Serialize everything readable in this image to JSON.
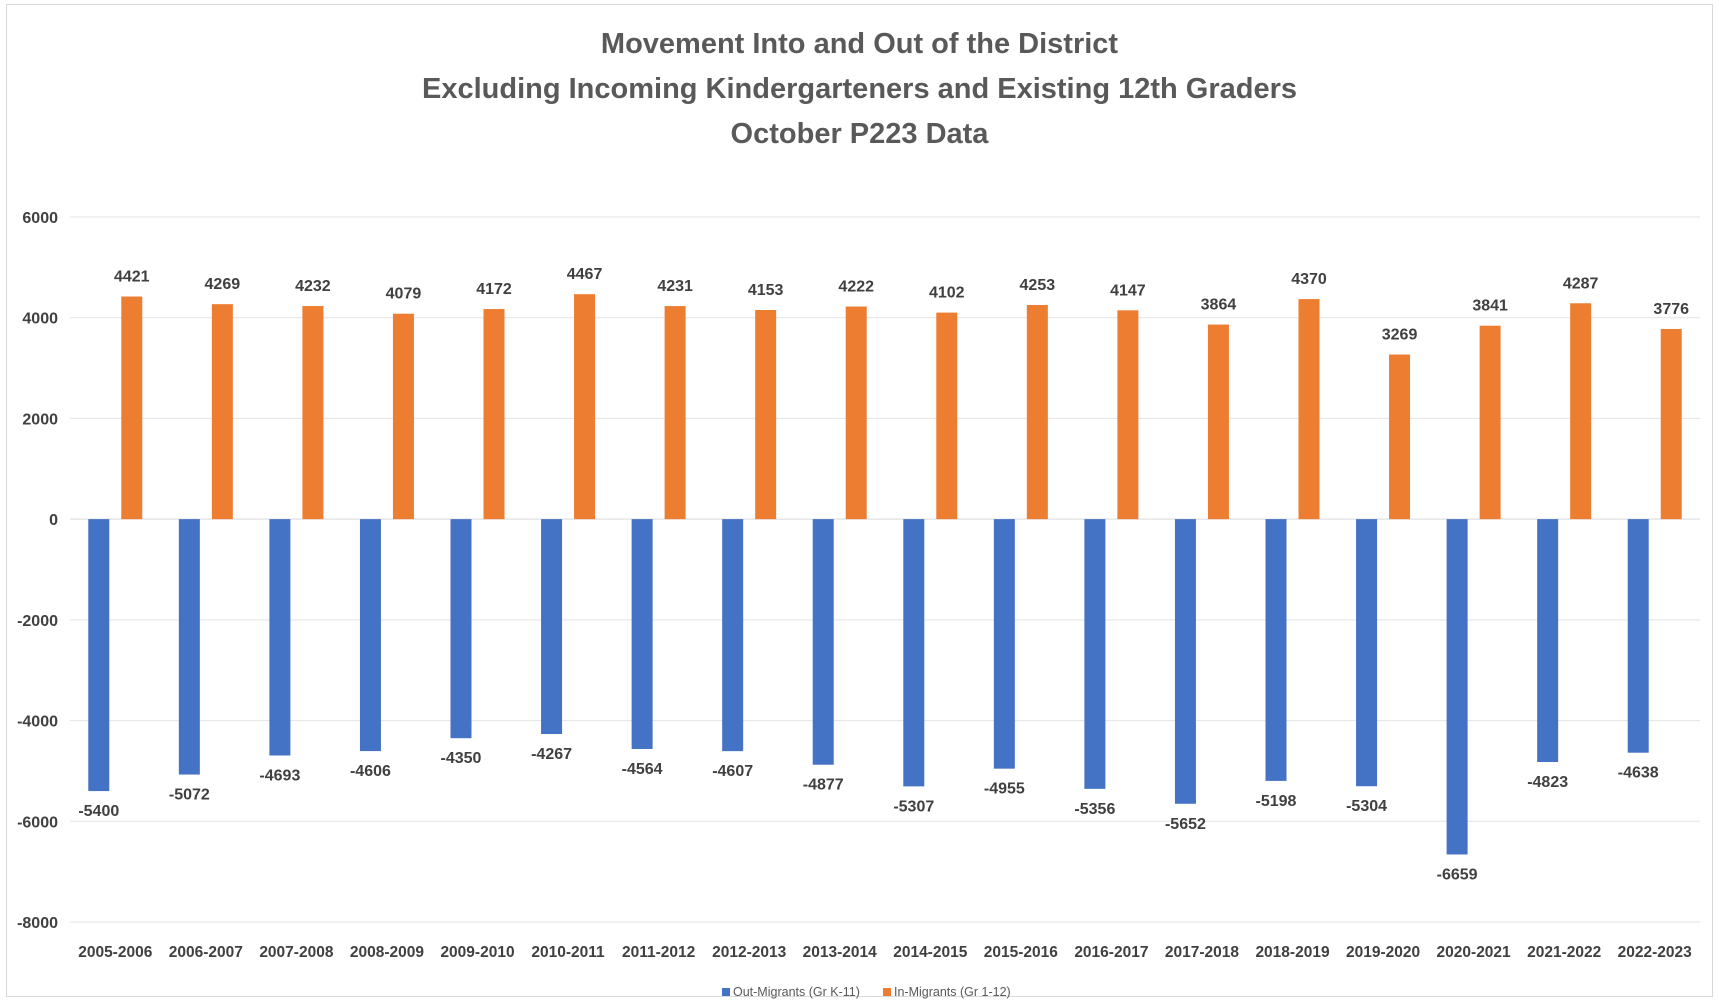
{
  "chart_data": {
    "type": "bar",
    "title": "Movement Into and Out of the District",
    "subtitle": "Excluding Incoming Kindergarteners and Existing 12th Graders",
    "subtitle2": "October P223 Data",
    "xlabel": "",
    "ylabel": "",
    "ylim": [
      -8000,
      6000
    ],
    "yticks": [
      6000,
      4000,
      2000,
      0,
      -2000,
      -4000,
      -6000,
      -8000
    ],
    "grid": true,
    "legend_position": "bottom",
    "categories": [
      "2005-2006",
      "2006-2007",
      "2007-2008",
      "2008-2009",
      "2009-2010",
      "2010-2011",
      "2011-2012",
      "2012-2013",
      "2013-2014",
      "2014-2015",
      "2015-2016",
      "2016-2017",
      "2017-2018",
      "2018-2019",
      "2019-2020",
      "2020-2021",
      "2021-2022",
      "2022-2023"
    ],
    "series": [
      {
        "name": "Out-Migrants (Gr K-11)",
        "color": "#4472c4",
        "values": [
          -5400,
          -5072,
          -4693,
          -4606,
          -4350,
          -4267,
          -4564,
          -4607,
          -4877,
          -5307,
          -4955,
          -5356,
          -5652,
          -5198,
          -5304,
          -6659,
          -4823,
          -4638
        ]
      },
      {
        "name": "In-Migrants (Gr 1-12)",
        "color": "#ed7d31",
        "values": [
          4421,
          4269,
          4232,
          4079,
          4172,
          4467,
          4231,
          4153,
          4222,
          4102,
          4253,
          4147,
          3864,
          4370,
          3269,
          3841,
          4287,
          3776
        ]
      }
    ]
  }
}
